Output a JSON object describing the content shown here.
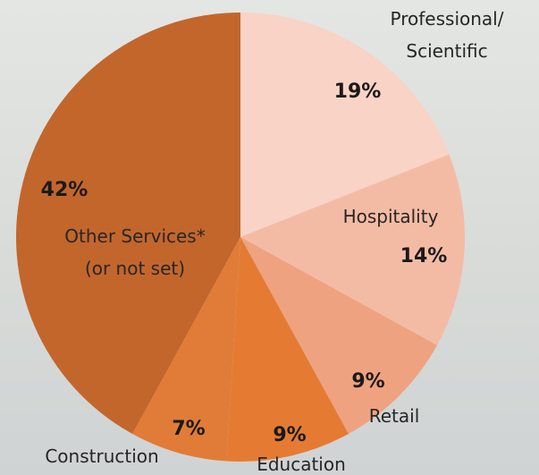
{
  "chart_data": {
    "type": "pie",
    "categories": [
      "Professional/\nScientific",
      "Hospitality",
      "Retail",
      "Education",
      "Construction",
      "Other Services*\n(or not set)"
    ],
    "values": [
      19,
      14,
      9,
      9,
      7,
      42
    ],
    "value_labels": [
      "19%",
      "14%",
      "9%",
      "9%",
      "7%",
      "42%"
    ],
    "colors": [
      "#f9d3c5",
      "#f4bba4",
      "#efa27f",
      "#e57b33",
      "#e07c37",
      "#c3662c"
    ]
  }
}
